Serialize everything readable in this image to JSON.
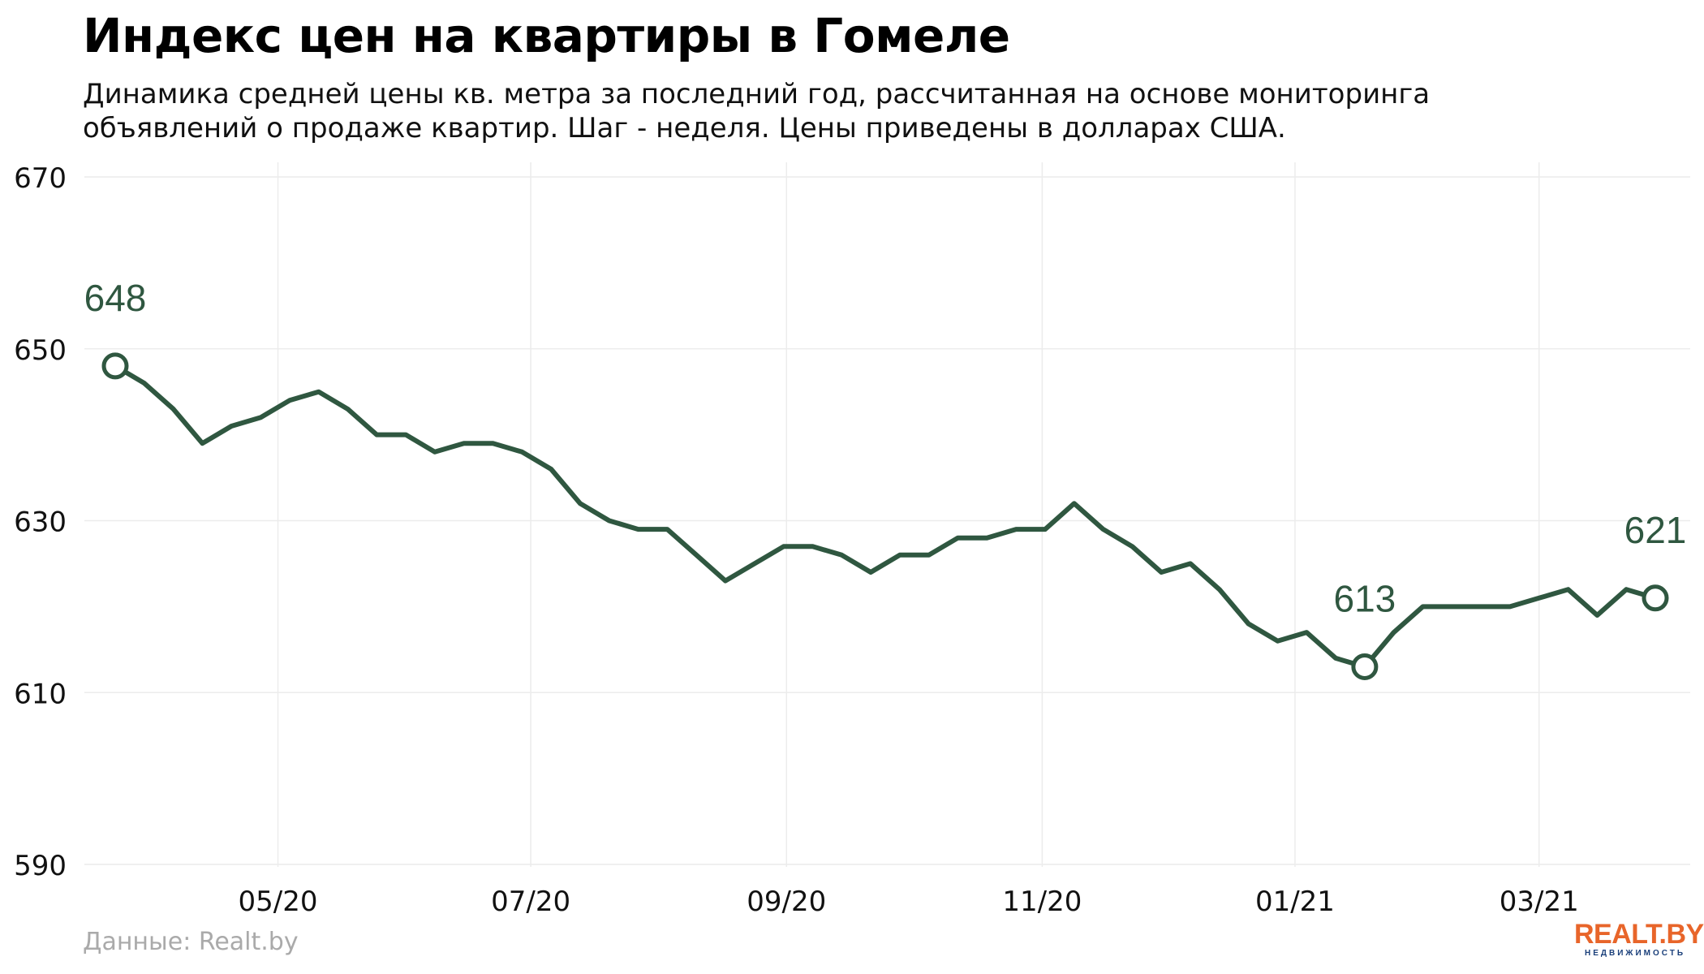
{
  "title": "Индекс цен на квартиры в Гомеле",
  "subtitle_lines": [
    "Динамика средней цены кв. метра за последний год, рассчитанная на основе мониторинга",
    "объявлений о продаже квартир. Шаг - неделя. Цены приведены в долларах США."
  ],
  "source": "Данные: Realt.by",
  "logo": {
    "main": "REALT.BY",
    "sub": "НЕДВИЖИМОСТЬ",
    "main_color": "#e8652a",
    "sub_color": "#1a3f7a"
  },
  "chart_data": {
    "type": "line",
    "ylim": [
      590,
      670
    ],
    "y_ticks": [
      590,
      610,
      630,
      650,
      670
    ],
    "x_ticks": [
      {
        "label": "05/20",
        "week": 5.6
      },
      {
        "label": "07/20",
        "week": 14.3
      },
      {
        "label": "09/20",
        "week": 23.1
      },
      {
        "label": "11/20",
        "week": 31.9
      },
      {
        "label": "01/21",
        "week": 40.6
      },
      {
        "label": "03/21",
        "week": 49.0
      }
    ],
    "line_color": "#2f5740",
    "grid": true,
    "values": [
      648,
      646,
      643,
      639,
      641,
      642,
      644,
      645,
      643,
      640,
      640,
      638,
      639,
      639,
      638,
      636,
      632,
      630,
      629,
      629,
      626,
      623,
      625,
      627,
      627,
      626,
      624,
      626,
      626,
      628,
      628,
      629,
      629,
      632,
      629,
      627,
      624,
      625,
      622,
      618,
      616,
      617,
      614,
      613,
      617,
      620,
      620,
      620,
      620,
      621,
      622,
      619,
      622,
      621
    ],
    "annotations": [
      {
        "index": 0,
        "label": "648"
      },
      {
        "index": 43,
        "label": "613"
      },
      {
        "index": 53,
        "label": "621"
      }
    ]
  }
}
